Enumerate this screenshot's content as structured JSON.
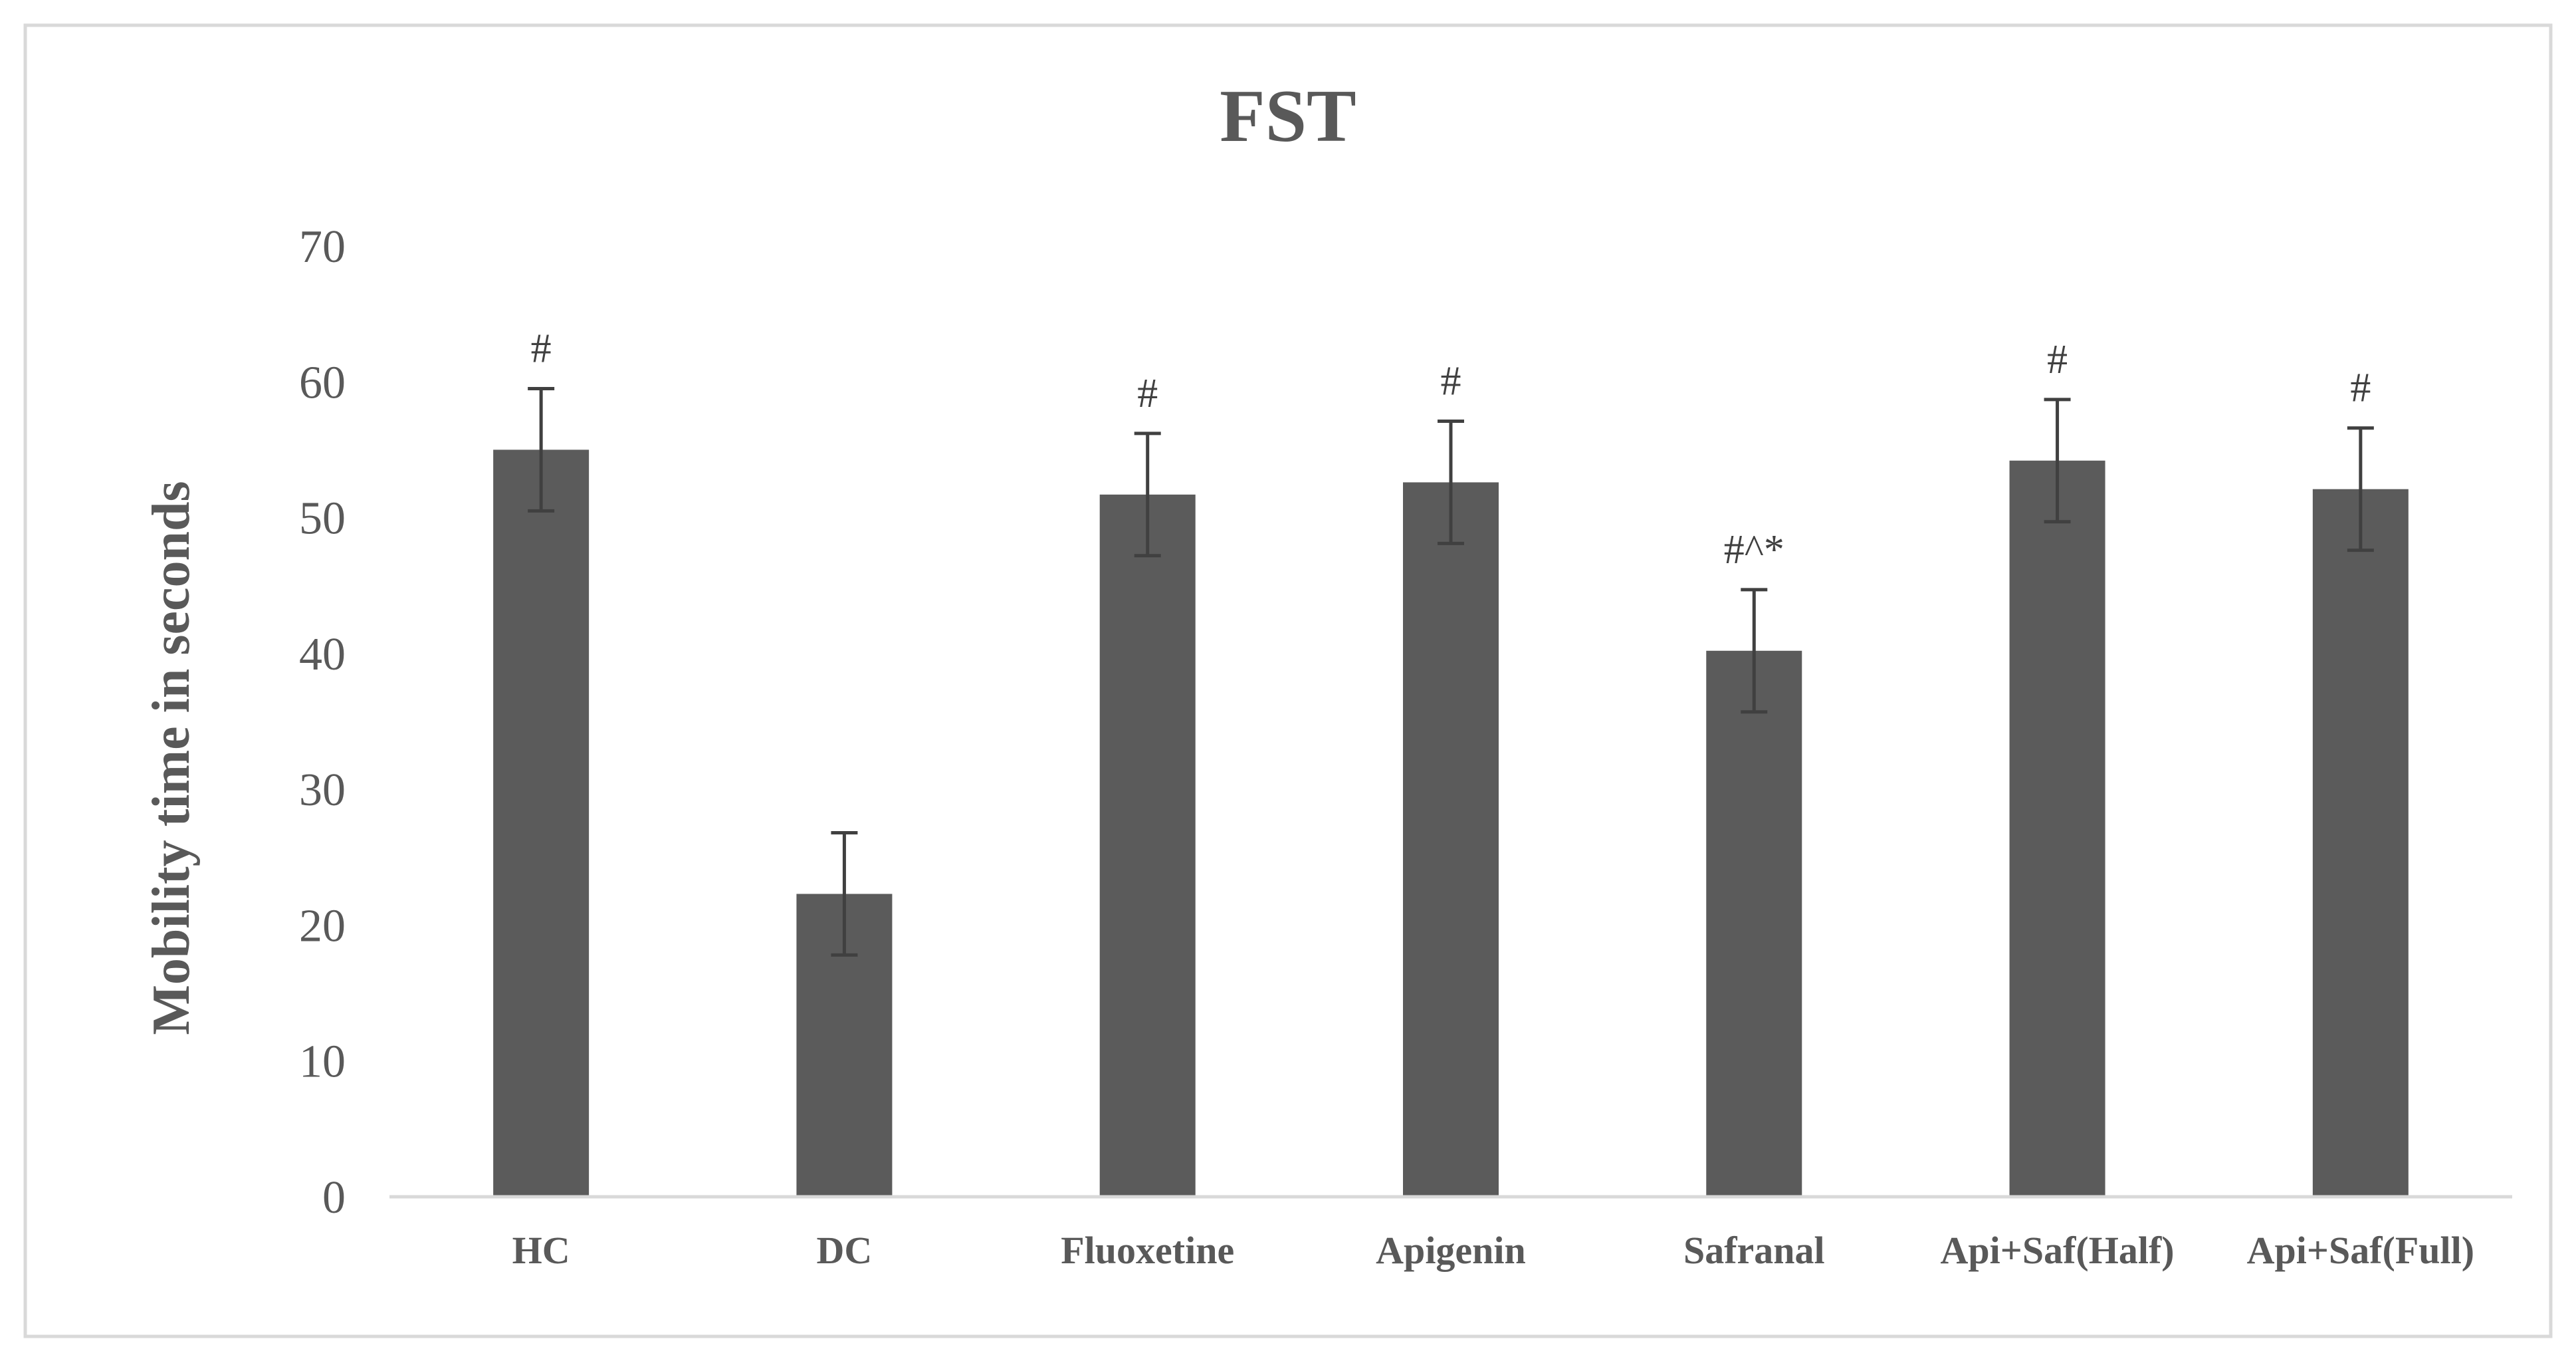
{
  "chart_data": {
    "type": "bar",
    "title": "FST",
    "ylabel": "Mobility  time in seconds",
    "xlabel": "",
    "ylim": [
      0,
      70
    ],
    "yticks": [
      0,
      10,
      20,
      30,
      40,
      50,
      60,
      70
    ],
    "grid": false,
    "categories": [
      "HC",
      "DC",
      "Fluoxetine",
      "Apigenin",
      "Safranal",
      "Api+Saf(Half)",
      "Api+Saf(Full)"
    ],
    "values": [
      55.0,
      22.3,
      51.7,
      52.6,
      40.2,
      54.2,
      52.1
    ],
    "error": [
      4.5,
      4.5,
      4.5,
      4.5,
      4.5,
      4.5,
      4.5
    ],
    "annotations": [
      "#",
      "",
      "#",
      "#",
      "#^*",
      "#",
      "#"
    ],
    "colors": {
      "bar": "#5b5b5b",
      "error_bar": "#404040",
      "axis": "#d9d9d9",
      "border": "#d9d9d9"
    }
  }
}
